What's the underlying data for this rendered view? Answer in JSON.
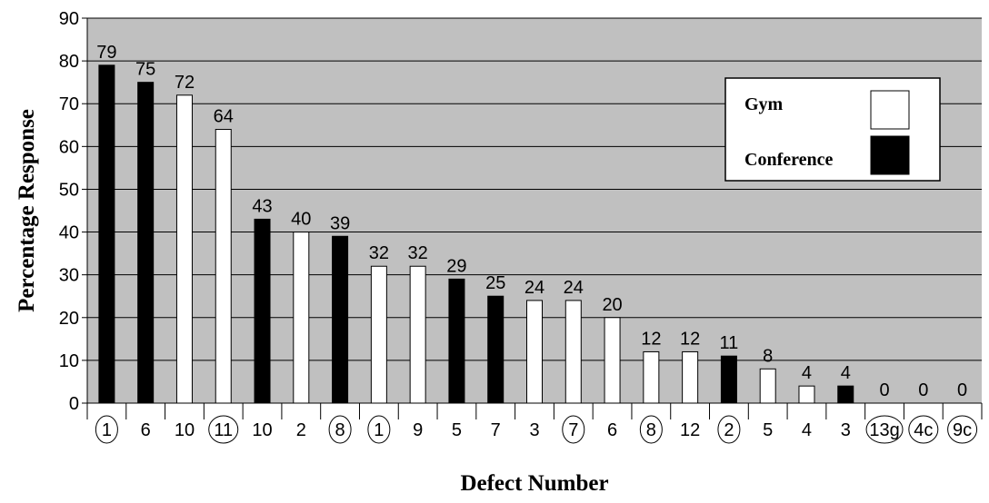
{
  "chart_data": {
    "type": "bar",
    "title": "",
    "xlabel": "Defect Number",
    "ylabel": "Percentage Response",
    "ylim": [
      0,
      90
    ],
    "y_ticks": [
      "0",
      "10",
      "20",
      "30",
      "40",
      "50",
      "60",
      "70",
      "80",
      "90"
    ],
    "grid": true,
    "legend_position": "top-right",
    "colors": {
      "plot_background": "#c0c0c0",
      "Gym": "#ffffff",
      "Conference": "#000000"
    },
    "series": [
      {
        "name": "Gym"
      },
      {
        "name": "Conference"
      }
    ],
    "bars": [
      {
        "category": "1",
        "value": 79,
        "series": "Conference",
        "circled": true
      },
      {
        "category": "6",
        "value": 75,
        "series": "Conference",
        "circled": false
      },
      {
        "category": "10",
        "value": 72,
        "series": "Gym",
        "circled": false
      },
      {
        "category": "11",
        "value": 64,
        "series": "Gym",
        "circled": true
      },
      {
        "category": "10",
        "value": 43,
        "series": "Conference",
        "circled": false
      },
      {
        "category": "2",
        "value": 40,
        "series": "Gym",
        "circled": false
      },
      {
        "category": "8",
        "value": 39,
        "series": "Conference",
        "circled": true
      },
      {
        "category": "1",
        "value": 32,
        "series": "Gym",
        "circled": true
      },
      {
        "category": "9",
        "value": 32,
        "series": "Gym",
        "circled": false
      },
      {
        "category": "5",
        "value": 29,
        "series": "Conference",
        "circled": false
      },
      {
        "category": "7",
        "value": 25,
        "series": "Conference",
        "circled": false
      },
      {
        "category": "3",
        "value": 24,
        "series": "Gym",
        "circled": false
      },
      {
        "category": "7",
        "value": 24,
        "series": "Gym",
        "circled": true
      },
      {
        "category": "6",
        "value": 20,
        "series": "Gym",
        "circled": false
      },
      {
        "category": "8",
        "value": 12,
        "series": "Gym",
        "circled": true
      },
      {
        "category": "12",
        "value": 12,
        "series": "Gym",
        "circled": false
      },
      {
        "category": "2",
        "value": 11,
        "series": "Conference",
        "circled": true
      },
      {
        "category": "5",
        "value": 8,
        "series": "Gym",
        "circled": false
      },
      {
        "category": "4",
        "value": 4,
        "series": "Gym",
        "circled": false
      },
      {
        "category": "3",
        "value": 4,
        "series": "Conference",
        "circled": false
      },
      {
        "category": "13g",
        "value": 0,
        "series": "Gym",
        "circled": true
      },
      {
        "category": "4c",
        "value": 0,
        "series": "Conference",
        "circled": true
      },
      {
        "category": "9c",
        "value": 0,
        "series": "Conference",
        "circled": true
      }
    ]
  }
}
